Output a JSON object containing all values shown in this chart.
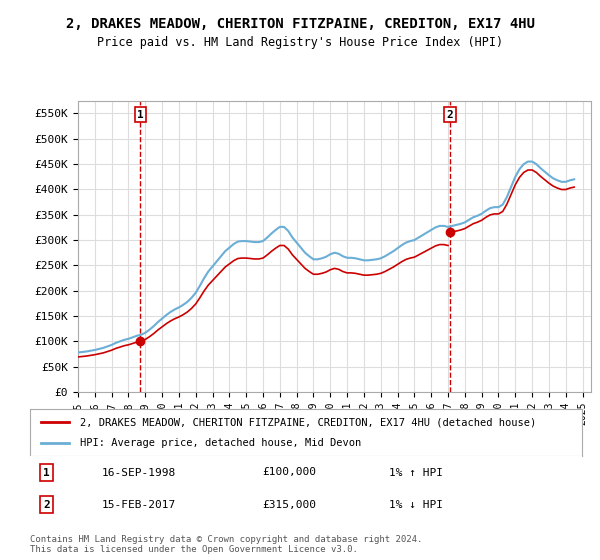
{
  "title": "2, DRAKES MEADOW, CHERITON FITZPAINE, CREDITON, EX17 4HU",
  "subtitle": "Price paid vs. HM Land Registry's House Price Index (HPI)",
  "xlim": [
    1995.0,
    2025.5
  ],
  "ylim": [
    0,
    575000
  ],
  "yticks": [
    0,
    50000,
    100000,
    150000,
    200000,
    250000,
    300000,
    350000,
    400000,
    450000,
    500000,
    550000
  ],
  "ytick_labels": [
    "£0",
    "£50K",
    "£100K",
    "£150K",
    "£200K",
    "£250K",
    "£300K",
    "£350K",
    "£400K",
    "£450K",
    "£500K",
    "£550K"
  ],
  "xticks": [
    1995,
    1996,
    1997,
    1998,
    1999,
    2000,
    2001,
    2002,
    2003,
    2004,
    2005,
    2006,
    2007,
    2008,
    2009,
    2010,
    2011,
    2012,
    2013,
    2014,
    2015,
    2016,
    2017,
    2018,
    2019,
    2020,
    2021,
    2022,
    2023,
    2024,
    2025
  ],
  "sale1_x": 1998.71,
  "sale1_y": 100000,
  "sale1_label": "1",
  "sale1_date": "16-SEP-1998",
  "sale1_price": "£100,000",
  "sale1_hpi": "1% ↑ HPI",
  "sale2_x": 2017.12,
  "sale2_y": 315000,
  "sale2_label": "2",
  "sale2_date": "15-FEB-2017",
  "sale2_price": "£315,000",
  "sale2_hpi": "1% ↓ HPI",
  "hpi_color": "#6baed6",
  "sale_color": "#cc0000",
  "vline_color": "#cc0000",
  "background_color": "#ffffff",
  "grid_color": "#dddddd",
  "legend_label_sale": "2, DRAKES MEADOW, CHERITON FITZPAINE, CREDITON, EX17 4HU (detached house)",
  "legend_label_hpi": "HPI: Average price, detached house, Mid Devon",
  "footer": "Contains HM Land Registry data © Crown copyright and database right 2024.\nThis data is licensed under the Open Government Licence v3.0.",
  "hpi_x": [
    1995.0,
    1995.25,
    1995.5,
    1995.75,
    1996.0,
    1996.25,
    1996.5,
    1996.75,
    1997.0,
    1997.25,
    1997.5,
    1997.75,
    1998.0,
    1998.25,
    1998.5,
    1998.75,
    1999.0,
    1999.25,
    1999.5,
    1999.75,
    2000.0,
    2000.25,
    2000.5,
    2000.75,
    2001.0,
    2001.25,
    2001.5,
    2001.75,
    2002.0,
    2002.25,
    2002.5,
    2002.75,
    2003.0,
    2003.25,
    2003.5,
    2003.75,
    2004.0,
    2004.25,
    2004.5,
    2004.75,
    2005.0,
    2005.25,
    2005.5,
    2005.75,
    2006.0,
    2006.25,
    2006.5,
    2006.75,
    2007.0,
    2007.25,
    2007.5,
    2007.75,
    2008.0,
    2008.25,
    2008.5,
    2008.75,
    2009.0,
    2009.25,
    2009.5,
    2009.75,
    2010.0,
    2010.25,
    2010.5,
    2010.75,
    2011.0,
    2011.25,
    2011.5,
    2011.75,
    2012.0,
    2012.25,
    2012.5,
    2012.75,
    2013.0,
    2013.25,
    2013.5,
    2013.75,
    2014.0,
    2014.25,
    2014.5,
    2014.75,
    2015.0,
    2015.25,
    2015.5,
    2015.75,
    2016.0,
    2016.25,
    2016.5,
    2016.75,
    2017.0,
    2017.25,
    2017.5,
    2017.75,
    2018.0,
    2018.25,
    2018.5,
    2018.75,
    2019.0,
    2019.25,
    2019.5,
    2019.75,
    2020.0,
    2020.25,
    2020.5,
    2020.75,
    2021.0,
    2021.25,
    2021.5,
    2021.75,
    2022.0,
    2022.25,
    2022.5,
    2022.75,
    2023.0,
    2023.25,
    2023.5,
    2023.75,
    2024.0,
    2024.25,
    2024.5
  ],
  "hpi_y": [
    78000,
    79000,
    80000,
    81500,
    83000,
    85000,
    87000,
    90000,
    93000,
    97000,
    100000,
    103000,
    105000,
    108000,
    111000,
    113000,
    117000,
    123000,
    130000,
    138000,
    145000,
    152000,
    158000,
    163000,
    167000,
    172000,
    178000,
    186000,
    196000,
    210000,
    225000,
    238000,
    248000,
    258000,
    268000,
    278000,
    285000,
    292000,
    297000,
    298000,
    298000,
    297000,
    296000,
    296000,
    298000,
    305000,
    313000,
    320000,
    326000,
    326000,
    318000,
    305000,
    295000,
    285000,
    275000,
    268000,
    262000,
    262000,
    264000,
    267000,
    272000,
    275000,
    273000,
    268000,
    265000,
    265000,
    264000,
    262000,
    260000,
    260000,
    261000,
    262000,
    264000,
    268000,
    273000,
    278000,
    284000,
    290000,
    295000,
    298000,
    300000,
    305000,
    310000,
    315000,
    320000,
    325000,
    328000,
    328000,
    326000,
    328000,
    330000,
    332000,
    335000,
    340000,
    345000,
    348000,
    352000,
    358000,
    363000,
    365000,
    365000,
    370000,
    385000,
    405000,
    425000,
    440000,
    450000,
    455000,
    455000,
    450000,
    442000,
    435000,
    428000,
    422000,
    418000,
    415000,
    415000,
    418000,
    420000
  ]
}
